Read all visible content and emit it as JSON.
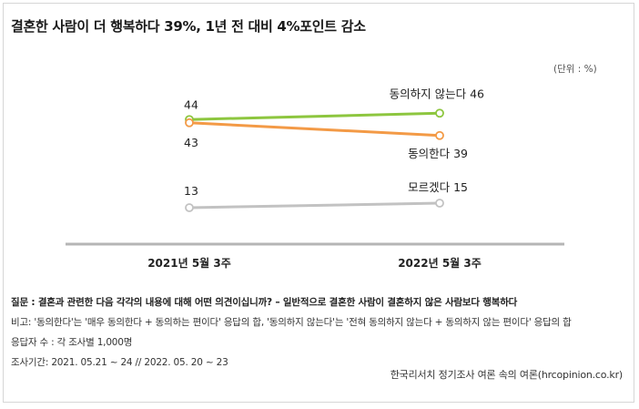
{
  "title": "결혼한 사람이 더 행복하다 39%, 1년 전 대비 4%포인트 감소",
  "unit": "(단위 : %)",
  "chart_data": {
    "type": "line",
    "categories": [
      "2021년 5월 3주",
      "2022년 5월 3주"
    ],
    "series": [
      {
        "name": "동의하지 않는다",
        "values": [
          44,
          46
        ],
        "color": "#8dc63f",
        "label_left": "44",
        "label_right": "동의하지 않는다 46"
      },
      {
        "name": "동의한다",
        "values": [
          43,
          39
        ],
        "color": "#f39a46",
        "label_left": "43",
        "label_right": "동의한다 39"
      },
      {
        "name": "모르겠다",
        "values": [
          13,
          15
        ],
        "color": "#c2c2c2",
        "label_left": "13",
        "label_right": "모르겠다 15"
      }
    ]
  },
  "notes": {
    "question": "질문 : 결혼과 관련한 다음 각각의 내용에 대해 어떤 의견이십니까? – 일반적으로 결혼한 사람이 결혼하지 않은 사람보다 행복하다",
    "remark": "비고: '동의한다'는 '매우 동의한다 + 동의하는 편이다' 응답의 합, '동의하지 않는다'는 '전혀 동의하지 않는다 + 동의하지 않는 편이다' 응답의 합",
    "respondents": "응답자 수 : 각 조사별 1,000명",
    "period": "조사기간: 2021. 05.21 ~ 24 // 2022. 05. 20 ~ 23"
  },
  "source": "한국리서치 정기조사 여론 속의 여론(hrcopinion.co.kr)"
}
